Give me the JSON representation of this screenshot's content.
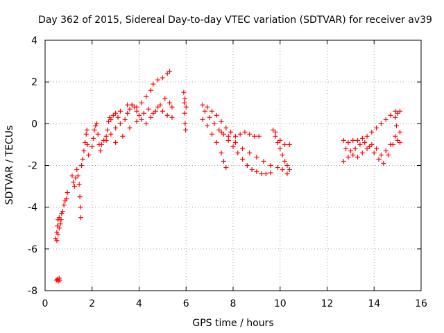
{
  "chart_data": {
    "type": "scatter",
    "title": "Day 362 of 2015, Sidereal Day-to-day VTEC variation (SDTVAR) for receiver av39",
    "xlabel": "GPS time / hours",
    "ylabel": "SDTVAR / TECUs",
    "xlim": [
      0,
      16
    ],
    "ylim": [
      -8,
      4
    ],
    "xticks": [
      0,
      2,
      4,
      6,
      8,
      10,
      12,
      14,
      16
    ],
    "yticks": [
      -8,
      -6,
      -4,
      -2,
      0,
      2,
      4
    ],
    "grid": true,
    "marker": "+",
    "color": "#ff0000",
    "series": [
      {
        "points": [
          [
            0.48,
            -7.5
          ],
          [
            0.52,
            -7.45
          ],
          [
            0.56,
            -7.55
          ],
          [
            0.6,
            -7.4
          ],
          [
            0.62,
            -7.5
          ],
          [
            0.45,
            -5.5
          ],
          [
            0.5,
            -5.2
          ],
          [
            0.52,
            -4.9
          ],
          [
            0.55,
            -4.6
          ],
          [
            0.6,
            -4.5
          ],
          [
            0.65,
            -4.8
          ],
          [
            0.7,
            -4.3
          ],
          [
            0.75,
            -4.2
          ],
          [
            0.8,
            -3.9
          ],
          [
            0.85,
            -3.7
          ],
          [
            0.9,
            -3.6
          ],
          [
            0.95,
            -3.3
          ],
          [
            0.5,
            -5.6
          ],
          [
            0.55,
            -5.3
          ],
          [
            0.6,
            -5.0
          ],
          [
            0.68,
            -4.6
          ],
          [
            1.15,
            -2.5
          ],
          [
            1.2,
            -2.8
          ],
          [
            1.25,
            -3.0
          ],
          [
            1.3,
            -2.6
          ],
          [
            1.35,
            -2.2
          ],
          [
            1.4,
            -2.5
          ],
          [
            1.45,
            -2.9
          ],
          [
            1.48,
            -3.5
          ],
          [
            1.5,
            -4.0
          ],
          [
            1.52,
            -4.5
          ],
          [
            1.55,
            -2.0
          ],
          [
            1.6,
            -1.7
          ],
          [
            1.65,
            -1.3
          ],
          [
            1.7,
            -0.9
          ],
          [
            1.75,
            -0.5
          ],
          [
            1.78,
            -0.3
          ],
          [
            1.8,
            -1.0
          ],
          [
            1.85,
            -1.5
          ],
          [
            2.0,
            -1.1
          ],
          [
            2.05,
            -0.7
          ],
          [
            2.1,
            -0.3
          ],
          [
            2.15,
            -0.1
          ],
          [
            2.2,
            0.0
          ],
          [
            2.25,
            -0.5
          ],
          [
            2.3,
            -1.0
          ],
          [
            2.35,
            -1.3
          ],
          [
            2.4,
            -1.0
          ],
          [
            2.5,
            -0.8
          ],
          [
            2.6,
            -0.6
          ],
          [
            2.65,
            -0.3
          ],
          [
            2.7,
            0.1
          ],
          [
            2.75,
            0.3
          ],
          [
            2.8,
            0.2
          ],
          [
            2.9,
            0.4
          ],
          [
            3.0,
            0.5
          ],
          [
            3.1,
            0.3
          ],
          [
            3.2,
            0.6
          ],
          [
            2.6,
            -0.8
          ],
          [
            2.8,
            -0.5
          ],
          [
            3.0,
            -0.2
          ],
          [
            3.2,
            0.0
          ],
          [
            3.4,
            0.2
          ],
          [
            3.5,
            0.5
          ],
          [
            3.6,
            0.7
          ],
          [
            3.7,
            0.9
          ],
          [
            3.8,
            0.8
          ],
          [
            3.9,
            0.6
          ],
          [
            4.0,
            0.4
          ],
          [
            4.2,
            0.5
          ],
          [
            4.4,
            0.7
          ],
          [
            4.6,
            0.5
          ],
          [
            4.8,
            0.8
          ],
          [
            5.0,
            0.6
          ],
          [
            5.2,
            0.4
          ],
          [
            5.4,
            0.3
          ],
          [
            3.0,
            -0.9
          ],
          [
            3.3,
            -0.6
          ],
          [
            3.6,
            -0.2
          ],
          [
            3.9,
            0.1
          ],
          [
            4.1,
            0.2
          ],
          [
            4.3,
            0.0
          ],
          [
            4.5,
            0.3
          ],
          [
            4.7,
            0.6
          ],
          [
            4.9,
            0.9
          ],
          [
            5.1,
            1.2
          ],
          [
            5.3,
            1.0
          ],
          [
            5.4,
            0.8
          ],
          [
            3.5,
            0.9
          ],
          [
            3.7,
            0.9
          ],
          [
            3.9,
            0.8
          ],
          [
            4.1,
            1.0
          ],
          [
            4.3,
            1.3
          ],
          [
            4.5,
            1.6
          ],
          [
            4.6,
            1.9
          ],
          [
            4.8,
            2.1
          ],
          [
            5.0,
            2.2
          ],
          [
            5.2,
            2.4
          ],
          [
            5.3,
            2.5
          ],
          [
            5.9,
            1.5
          ],
          [
            5.92,
            1.0
          ],
          [
            5.94,
            0.5
          ],
          [
            5.96,
            0.0
          ],
          [
            5.98,
            -0.3
          ],
          [
            6.0,
            0.8
          ],
          [
            5.95,
            1.2
          ],
          [
            6.7,
            0.9
          ],
          [
            6.9,
            0.8
          ],
          [
            7.1,
            0.6
          ],
          [
            7.3,
            0.4
          ],
          [
            7.5,
            0.1
          ],
          [
            7.7,
            -0.2
          ],
          [
            7.9,
            -0.4
          ],
          [
            8.1,
            -0.6
          ],
          [
            8.3,
            -0.5
          ],
          [
            8.5,
            -0.4
          ],
          [
            8.7,
            -0.5
          ],
          [
            8.9,
            -0.6
          ],
          [
            9.1,
            -0.6
          ],
          [
            6.8,
            0.6
          ],
          [
            7.0,
            0.3
          ],
          [
            7.2,
            0.0
          ],
          [
            7.4,
            -0.3
          ],
          [
            7.6,
            -0.5
          ],
          [
            7.8,
            -0.8
          ],
          [
            8.0,
            -1.1
          ],
          [
            8.2,
            -1.4
          ],
          [
            8.4,
            -1.7
          ],
          [
            8.6,
            -2.0
          ],
          [
            8.8,
            -2.2
          ],
          [
            9.0,
            -2.3
          ],
          [
            9.2,
            -2.4
          ],
          [
            9.4,
            -2.4
          ],
          [
            9.6,
            -2.35
          ],
          [
            6.7,
            0.2
          ],
          [
            6.9,
            -0.1
          ],
          [
            7.1,
            -0.5
          ],
          [
            7.3,
            -0.9
          ],
          [
            7.5,
            -1.4
          ],
          [
            7.6,
            -1.8
          ],
          [
            7.7,
            -2.1
          ],
          [
            7.5,
            -0.4
          ],
          [
            7.8,
            -0.6
          ],
          [
            8.1,
            -0.9
          ],
          [
            8.4,
            -1.2
          ],
          [
            8.7,
            -1.4
          ],
          [
            9.0,
            -1.6
          ],
          [
            9.3,
            -1.8
          ],
          [
            9.6,
            -2.0
          ],
          [
            9.9,
            -2.1
          ],
          [
            10.1,
            -2.2
          ],
          [
            10.3,
            -2.4
          ],
          [
            9.7,
            -0.3
          ],
          [
            9.8,
            -0.6
          ],
          [
            9.9,
            -0.9
          ],
          [
            10.0,
            -1.2
          ],
          [
            10.1,
            -1.5
          ],
          [
            10.2,
            -1.8
          ],
          [
            10.3,
            -2.0
          ],
          [
            10.4,
            -2.2
          ],
          [
            9.8,
            -0.4
          ],
          [
            10.0,
            -0.8
          ],
          [
            10.2,
            -1.0
          ],
          [
            10.4,
            -1.0
          ],
          [
            12.7,
            -0.8
          ],
          [
            12.9,
            -0.9
          ],
          [
            13.1,
            -0.8
          ],
          [
            13.3,
            -0.8
          ],
          [
            13.5,
            -0.7
          ],
          [
            13.7,
            -0.6
          ],
          [
            13.9,
            -0.4
          ],
          [
            14.1,
            -0.2
          ],
          [
            14.3,
            0.0
          ],
          [
            14.5,
            0.2
          ],
          [
            14.7,
            0.4
          ],
          [
            14.9,
            0.6
          ],
          [
            15.1,
            0.6
          ],
          [
            12.7,
            -1.8
          ],
          [
            12.9,
            -1.6
          ],
          [
            13.1,
            -1.5
          ],
          [
            13.3,
            -1.6
          ],
          [
            13.5,
            -1.4
          ],
          [
            13.7,
            -1.2
          ],
          [
            13.9,
            -1.0
          ],
          [
            14.1,
            -1.2
          ],
          [
            14.3,
            -1.5
          ],
          [
            14.5,
            -1.3
          ],
          [
            14.7,
            -1.0
          ],
          [
            14.9,
            -0.6
          ],
          [
            15.1,
            -0.4
          ],
          [
            12.8,
            -1.2
          ],
          [
            13.0,
            -1.3
          ],
          [
            13.2,
            -1.2
          ],
          [
            13.4,
            -1.0
          ],
          [
            13.6,
            -0.9
          ],
          [
            13.8,
            -1.1
          ],
          [
            14.0,
            -1.4
          ],
          [
            14.2,
            -1.7
          ],
          [
            14.4,
            -1.9
          ],
          [
            14.6,
            -1.5
          ],
          [
            14.8,
            -1.0
          ],
          [
            15.0,
            -0.8
          ],
          [
            15.1,
            -0.9
          ],
          [
            14.9,
            0.3
          ],
          [
            15.0,
            0.5
          ],
          [
            14.95,
            -0.1
          ]
        ]
      }
    ]
  }
}
